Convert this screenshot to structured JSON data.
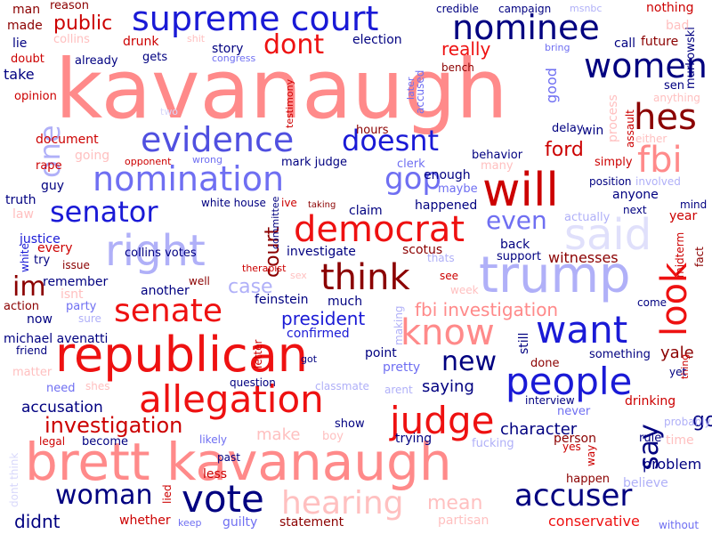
{
  "palette": {
    "dark_red": "#8b0000",
    "red": "#ee1111",
    "pink": "#ff7f7f",
    "light_pink": "#ffc0c0",
    "navy": "#000080",
    "blue": "#1a1ad6",
    "periwinkle": "#6f6ff2",
    "lavender": "#b0b0f8",
    "pale_lavender": "#d8d8fb"
  },
  "words": [
    {
      "text": "kavanaugh",
      "color": "#ff8a8a"
    },
    {
      "text": "brett kavanaugh",
      "color": "#ff8a8a"
    },
    {
      "text": "republican",
      "color": "#ee1111"
    },
    {
      "text": "supreme court",
      "color": "#1a1ad6"
    },
    {
      "text": "trump",
      "color": "#b0b0f8"
    },
    {
      "text": "nominee",
      "color": "#000080"
    },
    {
      "text": "will",
      "color": "#cc0000"
    },
    {
      "text": "allegation",
      "color": "#ee1111"
    },
    {
      "text": "evidence",
      "color": "#5050e0"
    },
    {
      "text": "nomination",
      "color": "#6f6ff2"
    },
    {
      "text": "people",
      "color": "#1a1ad6"
    },
    {
      "text": "want",
      "color": "#1a1ad6"
    },
    {
      "text": "vote",
      "color": "#000080"
    },
    {
      "text": "accuser",
      "color": "#000080"
    },
    {
      "text": "judge",
      "color": "#ee1111"
    },
    {
      "text": "think",
      "color": "#8b0000"
    },
    {
      "text": "democrat",
      "color": "#ee1111"
    },
    {
      "text": "women",
      "color": "#000080"
    },
    {
      "text": "doesnt",
      "color": "#1a1ad6"
    },
    {
      "text": "right",
      "color": "#b0b0f8"
    },
    {
      "text": "senate",
      "color": "#ee1111"
    },
    {
      "text": "look",
      "color": "#ee1111"
    },
    {
      "text": "hes",
      "color": "#8b0000"
    },
    {
      "text": "fbi",
      "color": "#ff8a8a"
    },
    {
      "text": "said",
      "color": "#e0e0fb"
    },
    {
      "text": "know",
      "color": "#ff8a8a"
    },
    {
      "text": "hearing",
      "color": "#ffc0c0"
    },
    {
      "text": "woman",
      "color": "#000080"
    },
    {
      "text": "investigation",
      "color": "#cc0000"
    },
    {
      "text": "senator",
      "color": "#1a1ad6"
    },
    {
      "text": "gop",
      "color": "#6f6ff2"
    },
    {
      "text": "dont",
      "color": "#ee1111"
    },
    {
      "text": "say",
      "color": "#000080"
    },
    {
      "text": "new",
      "color": "#000080"
    },
    {
      "text": "im",
      "color": "#8b0000"
    },
    {
      "text": "one",
      "color": "#b0b0f8"
    },
    {
      "text": "even",
      "color": "#6f6ff2"
    },
    {
      "text": "ford",
      "color": "#cc0000"
    },
    {
      "text": "public",
      "color": "#cc0000"
    },
    {
      "text": "court",
      "color": "#8b0000"
    },
    {
      "text": "fbi investigation",
      "color": "#ff8a8a"
    },
    {
      "text": "case",
      "color": "#b0b0f8"
    },
    {
      "text": "president",
      "color": "#1a1ad6"
    },
    {
      "text": "didnt",
      "color": "#000080"
    },
    {
      "text": "mean",
      "color": "#ffc0c0"
    },
    {
      "text": "go",
      "color": "#000080"
    },
    {
      "text": "really",
      "color": "#ee1111"
    },
    {
      "text": "yale",
      "color": "#8b0000"
    },
    {
      "text": "make",
      "color": "#ffc0c0"
    },
    {
      "text": "conservative",
      "color": "#ee1111"
    },
    {
      "text": "character",
      "color": "#000080"
    },
    {
      "text": "accusation",
      "color": "#000080"
    },
    {
      "text": "saying",
      "color": "#000080"
    },
    {
      "text": "problem",
      "color": "#000080"
    },
    {
      "text": "man",
      "color": "#8b0000"
    },
    {
      "text": "made",
      "color": "#8b0000"
    },
    {
      "text": "lie",
      "color": "#000080"
    },
    {
      "text": "drunk",
      "color": "#cc0000"
    },
    {
      "text": "collins",
      "color": "#ffc0c0"
    },
    {
      "text": "story",
      "color": "#000080"
    },
    {
      "text": "election",
      "color": "#000080"
    },
    {
      "text": "call",
      "color": "#000080"
    },
    {
      "text": "future",
      "color": "#8b0000"
    },
    {
      "text": "nothing",
      "color": "#cc0000"
    },
    {
      "text": "bad",
      "color": "#ffc0c0"
    },
    {
      "text": "msnbc",
      "color": "#b0b0f8"
    },
    {
      "text": "campaign",
      "color": "#000080"
    },
    {
      "text": "credible",
      "color": "#000080"
    },
    {
      "text": "reason",
      "color": "#8b0000"
    },
    {
      "text": "take",
      "color": "#000080"
    },
    {
      "text": "doubt",
      "color": "#cc0000"
    },
    {
      "text": "opinion",
      "color": "#cc0000"
    },
    {
      "text": "already",
      "color": "#000080"
    },
    {
      "text": "gets",
      "color": "#000080"
    },
    {
      "text": "congress",
      "color": "#6f6ff2"
    },
    {
      "text": "shit",
      "color": "#ffc0c0"
    },
    {
      "text": "bench",
      "color": "#8b0000"
    },
    {
      "text": "accused",
      "color": "#6f6ff2"
    },
    {
      "text": "testimony",
      "color": "#cc0000"
    },
    {
      "text": "later",
      "color": "#6f6ff2"
    },
    {
      "text": "good",
      "color": "#6f6ff2"
    },
    {
      "text": "process",
      "color": "#ffc0c0"
    },
    {
      "text": "assault",
      "color": "#cc0000"
    },
    {
      "text": "sen",
      "color": "#000080"
    },
    {
      "text": "anything",
      "color": "#ffc0c0"
    },
    {
      "text": "murkowski",
      "color": "#000080"
    },
    {
      "text": "bring",
      "color": "#6f6ff2"
    },
    {
      "text": "win",
      "color": "#000080"
    },
    {
      "text": "delay",
      "color": "#000080"
    },
    {
      "text": "either",
      "color": "#ffc0c0"
    },
    {
      "text": "hours",
      "color": "#8b0000"
    },
    {
      "text": "document",
      "color": "#cc0000"
    },
    {
      "text": "rape",
      "color": "#cc0000"
    },
    {
      "text": "going",
      "color": "#ffc0c0"
    },
    {
      "text": "opponent",
      "color": "#cc0000"
    },
    {
      "text": "wrong",
      "color": "#6f6ff2"
    },
    {
      "text": "mark judge",
      "color": "#000080"
    },
    {
      "text": "clerk",
      "color": "#6f6ff2"
    },
    {
      "text": "behavior",
      "color": "#000080"
    },
    {
      "text": "many",
      "color": "#ffc0c0"
    },
    {
      "text": "simply",
      "color": "#cc0000"
    },
    {
      "text": "position",
      "color": "#000080"
    },
    {
      "text": "involved",
      "color": "#b0b0f8"
    },
    {
      "text": "mind",
      "color": "#000080"
    },
    {
      "text": "truth",
      "color": "#000080"
    },
    {
      "text": "guy",
      "color": "#000080"
    },
    {
      "text": "white house",
      "color": "#000080"
    },
    {
      "text": "ive",
      "color": "#cc0000"
    },
    {
      "text": "taking",
      "color": "#8b0000"
    },
    {
      "text": "claim",
      "color": "#000080"
    },
    {
      "text": "enough",
      "color": "#000080"
    },
    {
      "text": "maybe",
      "color": "#6f6ff2"
    },
    {
      "text": "happened",
      "color": "#000080"
    },
    {
      "text": "anyone",
      "color": "#000080"
    },
    {
      "text": "next",
      "color": "#000080"
    },
    {
      "text": "actually",
      "color": "#b0b0f8"
    },
    {
      "text": "year",
      "color": "#cc0000"
    },
    {
      "text": "law",
      "color": "#ffc0c0"
    },
    {
      "text": "justice",
      "color": "#1a1ad6"
    },
    {
      "text": "white",
      "color": "#1a1ad6"
    },
    {
      "text": "every",
      "color": "#cc0000"
    },
    {
      "text": "try",
      "color": "#000080"
    },
    {
      "text": "issue",
      "color": "#8b0000"
    },
    {
      "text": "collins votes",
      "color": "#000080"
    },
    {
      "text": "committee",
      "color": "#000080"
    },
    {
      "text": "investigate",
      "color": "#000080"
    },
    {
      "text": "scotus",
      "color": "#8b0000"
    },
    {
      "text": "therapist",
      "color": "#cc0000"
    },
    {
      "text": "thats",
      "color": "#b0b0f8"
    },
    {
      "text": "back",
      "color": "#000080"
    },
    {
      "text": "support",
      "color": "#000080"
    },
    {
      "text": "witnesses",
      "color": "#8b0000"
    },
    {
      "text": "midterm",
      "color": "#cc0000"
    },
    {
      "text": "fact",
      "color": "#8b0000"
    },
    {
      "text": "remember",
      "color": "#000080"
    },
    {
      "text": "isnt",
      "color": "#ffc0c0"
    },
    {
      "text": "another",
      "color": "#000080"
    },
    {
      "text": "well",
      "color": "#8b0000"
    },
    {
      "text": "sex",
      "color": "#ffc0c0"
    },
    {
      "text": "see",
      "color": "#cc0000"
    },
    {
      "text": "week",
      "color": "#ffc0c0"
    },
    {
      "text": "come",
      "color": "#000080"
    },
    {
      "text": "action",
      "color": "#8b0000"
    },
    {
      "text": "party",
      "color": "#6f6ff2"
    },
    {
      "text": "feinstein",
      "color": "#000080"
    },
    {
      "text": "much",
      "color": "#000080"
    },
    {
      "text": "now",
      "color": "#000080"
    },
    {
      "text": "sure",
      "color": "#b0b0f8"
    },
    {
      "text": "confirmed",
      "color": "#1a1ad6"
    },
    {
      "text": "making",
      "color": "#b0b0f8"
    },
    {
      "text": "still",
      "color": "#000080"
    },
    {
      "text": "michael avenatti",
      "color": "#000080"
    },
    {
      "text": "friend",
      "color": "#000080"
    },
    {
      "text": "letter",
      "color": "#cc0000"
    },
    {
      "text": "got",
      "color": "#000080"
    },
    {
      "text": "point",
      "color": "#000080"
    },
    {
      "text": "pretty",
      "color": "#6f6ff2"
    },
    {
      "text": "something",
      "color": "#000080"
    },
    {
      "text": "done",
      "color": "#8b0000"
    },
    {
      "text": "thing",
      "color": "#cc0000"
    },
    {
      "text": "yet",
      "color": "#000080"
    },
    {
      "text": "matter",
      "color": "#ffc0c0"
    },
    {
      "text": "need",
      "color": "#6f6ff2"
    },
    {
      "text": "shes",
      "color": "#ffc0c0"
    },
    {
      "text": "question",
      "color": "#000080"
    },
    {
      "text": "classmate",
      "color": "#b0b0f8"
    },
    {
      "text": "arent",
      "color": "#b0b0f8"
    },
    {
      "text": "interview",
      "color": "#000080"
    },
    {
      "text": "drinking",
      "color": "#cc0000"
    },
    {
      "text": "never",
      "color": "#6f6ff2"
    },
    {
      "text": "probably",
      "color": "#b0b0f8"
    },
    {
      "text": "legal",
      "color": "#cc0000"
    },
    {
      "text": "become",
      "color": "#000080"
    },
    {
      "text": "boy",
      "color": "#ffc0c0"
    },
    {
      "text": "show",
      "color": "#000080"
    },
    {
      "text": "likely",
      "color": "#6f6ff2"
    },
    {
      "text": "trying",
      "color": "#000080"
    },
    {
      "text": "fucking",
      "color": "#b0b0f8"
    },
    {
      "text": "person",
      "color": "#8b0000"
    },
    {
      "text": "rule",
      "color": "#000080"
    },
    {
      "text": "time",
      "color": "#ffc0c0"
    },
    {
      "text": "yes",
      "color": "#cc0000"
    },
    {
      "text": "way",
      "color": "#cc0000"
    },
    {
      "text": "dont think",
      "color": "#d8d8fb"
    },
    {
      "text": "past",
      "color": "#000080"
    },
    {
      "text": "lied",
      "color": "#cc0000"
    },
    {
      "text": "less",
      "color": "#cc0000"
    },
    {
      "text": "happen",
      "color": "#8b0000"
    },
    {
      "text": "believe",
      "color": "#b0b0f8"
    },
    {
      "text": "whether",
      "color": "#cc0000"
    },
    {
      "text": "keep",
      "color": "#6f6ff2"
    },
    {
      "text": "guilty",
      "color": "#6f6ff2"
    },
    {
      "text": "statement",
      "color": "#8b0000"
    },
    {
      "text": "partisan",
      "color": "#ffc0c0"
    },
    {
      "text": "without",
      "color": "#6f6ff2"
    },
    {
      "text": "two",
      "color": "#d8d8fb"
    }
  ]
}
